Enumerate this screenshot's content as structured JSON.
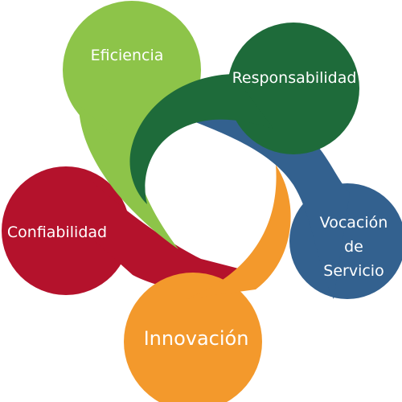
{
  "petals": [
    {
      "id": "eficiencia",
      "label": "Eficiencia",
      "color": "#8DC449"
    },
    {
      "id": "responsabilidad",
      "label": "Responsabilidad",
      "color": "#1E6B3A"
    },
    {
      "id": "vocacion",
      "lines": [
        "Vocación",
        "de",
        "Servicio"
      ],
      "color": "#33618F"
    },
    {
      "id": "confiabilidad",
      "label": "Confiabilidad",
      "color": "#B4122C"
    },
    {
      "id": "innovacion",
      "label": "Innovación",
      "color": "#F3992C"
    }
  ]
}
